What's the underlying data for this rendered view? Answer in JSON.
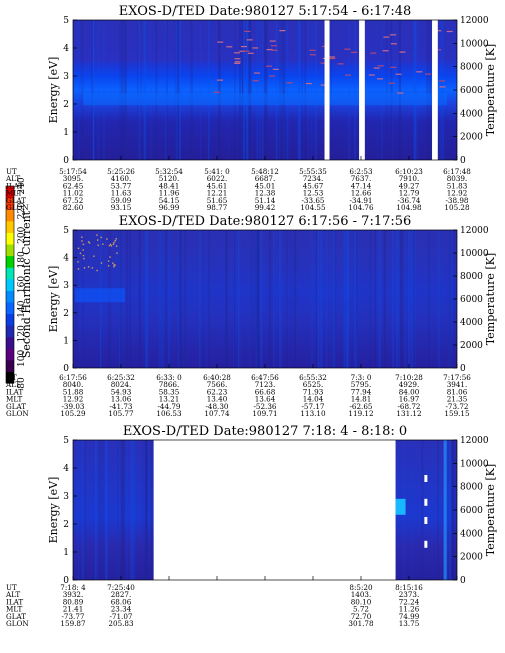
{
  "colorbar": {
    "label": "Second Harmonic Current",
    "ticks": [
      "80",
      "100",
      "120",
      "140",
      "160",
      "180",
      "200",
      "220",
      "240"
    ],
    "colors": [
      "#000000",
      "#3a0050",
      "#5a007e",
      "#3a0f8a",
      "#1f2ab0",
      "#0a3ee0",
      "#0a64ff",
      "#008cff",
      "#00c8ff",
      "#00e6b4",
      "#00d200",
      "#a0e000",
      "#ffff00",
      "#ffc800",
      "#ff8c00",
      "#ff3c00",
      "#e60000"
    ]
  },
  "chart_data": [
    {
      "type": "heatmap",
      "title": "EXOS-D/TED   Date:980127  5:17:54 - 6:17:48",
      "ylabel": "Energy [eV]",
      "y2label": "Temperature [K]",
      "ylim": [
        0,
        5
      ],
      "y2lim": [
        0,
        12000
      ],
      "yticks": [
        "0",
        "1",
        "2",
        "3",
        "4",
        "5"
      ],
      "y2ticks": [
        "0",
        "2000",
        "4000",
        "6000",
        "8000",
        "10000",
        "12000"
      ],
      "data_gaps": [
        [
          0.655,
          0.668
        ],
        [
          0.745,
          0.76
        ],
        [
          0.935,
          0.95
        ]
      ],
      "ephemeris": {
        "labels": [
          "UT",
          "ALT",
          "ILAT",
          "MLT",
          "GLAT",
          "GLON"
        ],
        "columns": [
          [
            "5:17:54",
            "3095.",
            "62.45",
            "11.02",
            "67.52",
            "82.60"
          ],
          [
            "5:25:26",
            "4160.",
            "53.77",
            "11.63",
            "59.09",
            "93.15"
          ],
          [
            "5:32:54",
            "5120.",
            "48.41",
            "11.96",
            "54.15",
            "96.99"
          ],
          [
            "5:41: 0",
            "6022.",
            "45.61",
            "12.21",
            "51.65",
            "98.77"
          ],
          [
            "5:48:12",
            "6687.",
            "45.01",
            "12.38",
            "51.14",
            "99.42"
          ],
          [
            "5:55:35",
            "7234.",
            "45.67",
            "12.53",
            "-33.65",
            "104.55"
          ],
          [
            "6:2:53",
            "7637.",
            "47.14",
            "12.66",
            "-34.91",
            "104.76"
          ],
          [
            "6:10:23",
            "7910.",
            "49.27",
            "12.79",
            "-36.74",
            "104.98"
          ],
          [
            "6:17:48",
            "8039.",
            "51.83",
            "12.92",
            "-38.98",
            "105.28"
          ]
        ]
      }
    },
    {
      "type": "heatmap",
      "title": "EXOS-D/TED   Date:980127  6:17:56 - 7:17:56",
      "ylabel": "Energy [eV]",
      "y2label": "Temperature [K]",
      "ylim": [
        0,
        5
      ],
      "y2lim": [
        0,
        12000
      ],
      "yticks": [
        "0",
        "1",
        "2",
        "3",
        "4",
        "5"
      ],
      "y2ticks": [
        "0",
        "2000",
        "4000",
        "6000",
        "8000",
        "10000",
        "12000"
      ],
      "data_gaps": [],
      "ephemeris": {
        "labels": [
          "UT",
          "ALT",
          "ILAT",
          "MLT",
          "GLAT",
          "GLON"
        ],
        "columns": [
          [
            "6:17:56",
            "8040.",
            "51.88",
            "12.92",
            "-39.03",
            "105.29"
          ],
          [
            "6:25:32",
            "8024.",
            "54.93",
            "13.06",
            "-41.73",
            "105.77"
          ],
          [
            "6:33: 0",
            "7866.",
            "58.35",
            "13.21",
            "-44.79",
            "106.53"
          ],
          [
            "6:40:28",
            "7566.",
            "62.23",
            "13.40",
            "-48.30",
            "107.74"
          ],
          [
            "6:47:56",
            "7123.",
            "66.68",
            "13.64",
            "-52.36",
            "109.71"
          ],
          [
            "6:55:32",
            "6525.",
            "71.93",
            "14.04",
            "-57.17",
            "113.10"
          ],
          [
            "7:3: 0",
            "5795.",
            "77.94",
            "14.81",
            "-62.65",
            "119.12"
          ],
          [
            "7:10:28",
            "4929.",
            "84.00",
            "16.97",
            "-68.72",
            "131.12"
          ],
          [
            "7:17:56",
            "3941.",
            "81.06",
            "21.35",
            "-73.72",
            "159.15"
          ]
        ]
      }
    },
    {
      "type": "heatmap",
      "title": "EXOS-D/TED   Date:980127  7:18: 4 - 8:18: 0",
      "ylabel": "Energy [eV]",
      "y2label": "Temperature [K]",
      "ylim": [
        0,
        5
      ],
      "y2lim": [
        0,
        12000
      ],
      "yticks": [
        "0",
        "1",
        "2",
        "3",
        "4",
        "5"
      ],
      "y2ticks": [
        "0",
        "2000",
        "4000",
        "6000",
        "8000",
        "10000",
        "12000"
      ],
      "data_gaps": [
        [
          0.21,
          0.84
        ]
      ],
      "ephemeris": {
        "labels": [
          "UT",
          "ALT",
          "ILAT",
          "MLT",
          "GLAT",
          "GLON"
        ],
        "columns": [
          [
            "7:18: 4",
            "3932.",
            "80.89",
            "21.41",
            "-73.77",
            "159.87"
          ],
          [
            "7:25:40",
            "2827.",
            "68.06",
            "23.34",
            "-71.07",
            "205.83"
          ],
          [
            "",
            "",
            "",
            "",
            "",
            ""
          ],
          [
            "",
            "",
            "",
            "",
            "",
            ""
          ],
          [
            "",
            "",
            "",
            "",
            "",
            ""
          ],
          [
            "",
            "",
            "",
            "",
            "",
            ""
          ],
          [
            "8:5:20",
            "1403.",
            "80.10",
            "5.72",
            "72.70",
            "301.78"
          ],
          [
            "8:15:16",
            "2373.",
            "72.24",
            "11.26",
            "74.99",
            "13.75"
          ],
          [
            "",
            "",
            "",
            "",
            "",
            ""
          ]
        ]
      }
    }
  ]
}
